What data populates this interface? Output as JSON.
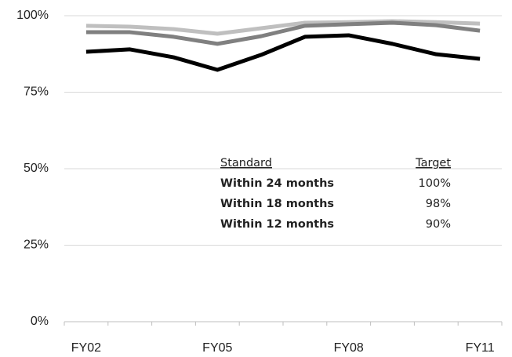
{
  "chart_data": {
    "type": "line",
    "categories": [
      "FY02",
      null,
      null,
      "FY05",
      null,
      null,
      "FY08",
      null,
      null,
      "FY11"
    ],
    "series": [
      {
        "name": "Within 24 months",
        "color": "#bfbfbf",
        "values": [
          96.7,
          96.4,
          95.6,
          94.1,
          95.9,
          97.7,
          97.9,
          98.2,
          97.9,
          97.4
        ],
        "target": 100,
        "target_label": "100%"
      },
      {
        "name": "Within 18 months",
        "color": "#808080",
        "values": [
          94.6,
          94.6,
          93.1,
          90.8,
          93.3,
          96.7,
          97.2,
          97.7,
          96.9,
          95.1
        ],
        "target": 98,
        "target_label": "98%"
      },
      {
        "name": "Within 12 months",
        "color": "#000000",
        "values": [
          88.2,
          89.0,
          86.4,
          82.3,
          87.2,
          93.1,
          93.6,
          90.8,
          87.4,
          85.9
        ],
        "target": 90,
        "target_label": "90%"
      }
    ],
    "legend_headers": [
      "Standard",
      "Target"
    ],
    "target_color": "#c00000",
    "ylim": [
      0,
      100
    ],
    "yticks": [
      {
        "value": 0,
        "label": "0%"
      },
      {
        "value": 25,
        "label": "25%"
      },
      {
        "value": 50,
        "label": "50%"
      },
      {
        "value": 75,
        "label": "75%"
      },
      {
        "value": 100,
        "label": "100%"
      }
    ],
    "grid": true
  }
}
